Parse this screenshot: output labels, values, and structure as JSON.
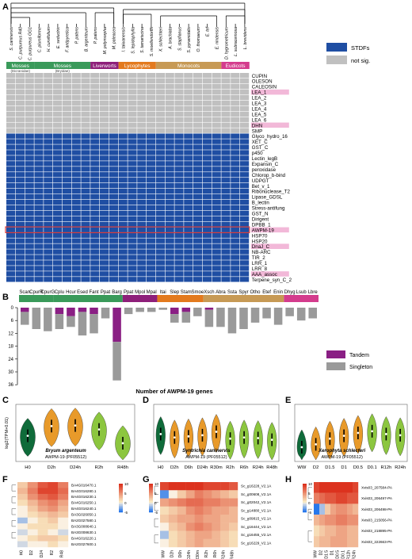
{
  "panel_letters": {
    "A": "A",
    "B": "B",
    "C": "C",
    "D": "D",
    "E": "E",
    "F": "F",
    "G": "G",
    "H": "H"
  },
  "colors": {
    "stdf": "#1f4ea3",
    "notsig": "#c0c0c0",
    "highlight_label": "#f2b8d8",
    "highlight_box": "#d63a3a",
    "mosses": "#3a9a5a",
    "liverworts": "#8e1f7a",
    "lycophytes": "#e37a1e",
    "monocots": "#c79a55",
    "eudicots": "#d43c8d",
    "tandem": "#8a1f84",
    "singleton": "#9a9a9a",
    "violin_dark": "#0f6b3a",
    "violin_orange": "#e89a2a",
    "violin_light": "#8cc63f"
  },
  "panel_A": {
    "species": [
      "S. caninervis",
      "C. purpureus R40",
      "C. purpureus GG1",
      "C. plumiforme",
      "H. curvifolium",
      "E. seductrix",
      "F. antipyretica",
      "P. patens",
      "B. argenteum",
      "P. patens",
      "M. polymorpha",
      "M. paleacea",
      "I. taiwanensis",
      "S. lepidophylla",
      "S. tamariscina",
      "S. moellendorffii",
      "X. schlechteri",
      "A. brachiata",
      "S. stapfianus",
      "S. pyramidalis",
      "O. thomaeum",
      "E. tef",
      "E. nindensis",
      "D. hygrometricum",
      "L. subracemosa",
      "L. brevidens"
    ],
    "groups": [
      {
        "name": "Mosses",
        "sub": "(Dicranidae)",
        "start": 0,
        "end": 3
      },
      {
        "name": "Mosses",
        "sub": "(Bryidae)",
        "start": 3,
        "end": 9
      },
      {
        "name": "Liverworts",
        "sub": "",
        "start": 9,
        "end": 12
      },
      {
        "name": "Lycophytes",
        "sub": "",
        "start": 12,
        "end": 16
      },
      {
        "name": "Monocots",
        "sub": "",
        "start": 16,
        "end": 23
      },
      {
        "name": "Eudicots",
        "sub": "",
        "start": 23,
        "end": 26
      }
    ],
    "legend": {
      "stdf": "STDFs",
      "notsig": "not sig."
    },
    "families": [
      "CUPIN",
      "OLESON",
      "CALEOSIN",
      "LEA_1",
      "LEA_2",
      "LEA_3",
      "LEA_4",
      "LEA_5",
      "LEA_6",
      "DHN",
      "SMP",
      "Glyco_hydro_16",
      "XET_C",
      "GST_C",
      "p450",
      "Lectin_legB",
      "Expansin_C",
      "peroxidase",
      "Chlorop_b-bind",
      "UDPGT",
      "Bet_v_1",
      "Ribonuclease_T2",
      "Lipase_GDSL",
      "B_lectin",
      "Stress-antifung",
      "GST_N",
      "Dirigent",
      "DPBB_1",
      "AWPM-19",
      "HSP70",
      "HSP20",
      "DnaJ_C",
      "NB-ARC",
      "TIR_2",
      "LRR_1",
      "LRR_8",
      "AAA_assoc",
      "Terpene_syn_C_2"
    ],
    "highlighted": [
      "LEA_1",
      "DHN",
      "AWPM-19",
      "DnaJ_C",
      "AAA_assoc"
    ],
    "boxed_row": "AWPM-19",
    "matrix": [
      "00000000000000000000000000",
      "00000000000000000000000000",
      "00000000000000000000000000",
      "00000000000000000000000000",
      "00000000000000000000000000",
      "00000000000000000000000000",
      "00000000000000000000000000",
      "00000000000000000000000000",
      "00000000000000000000000000",
      "00000000000000000000000000",
      "00000000000000000000000000",
      "11111111111111111111111111",
      "11111111111111111111111111",
      "11111111111111111111111111",
      "11111111111111111111111111",
      "11111111111111111111111111",
      "11111111111111111111111111",
      "11111111111111111111111111",
      "11111111111111111111111111",
      "11111111111111111111111111",
      "11111111111111111111111111",
      "11111111111111111111111111",
      "11111111111111111111111111",
      "11111111111111111111111111",
      "11111111111111111111111111",
      "11111111111111111111111111",
      "11111111111111111111111111",
      "11111111111111111111111111",
      "11111111111111111111111111",
      "11111111111111111111111111",
      "11111111111111111111111111",
      "11111111111111111111111111",
      "11111111111111111111111111",
      "11111111111111111111111111",
      "11111111111111111111111111",
      "11111111111111111111111111",
      "11111111111111111111111111",
      "11111111111111111111111111"
    ]
  },
  "panel_B": {
    "species_abbr": [
      "Scan",
      "CpurR",
      "CpurG",
      "Cplu",
      "Hcur",
      "Esed",
      "Fant",
      "Ppat",
      "Barg",
      "Ppat",
      "Mpol",
      "Mpal",
      "Itai",
      "Slep",
      "Stam",
      "Smoe",
      "Xsch",
      "Abra",
      "Ssta",
      "Spyr",
      "Otho",
      "Etef",
      "Enin",
      "Dhyg",
      "Lsub",
      "Lbre"
    ],
    "yticks": [
      0,
      6,
      12,
      18,
      24,
      30,
      36
    ],
    "xlabel": "Number of AWPM-19 genes",
    "legend": [
      "Tandem",
      "Singleton"
    ]
  },
  "violins": [
    {
      "panel": "C",
      "title": "Bryum argenteum",
      "subtitle": "AWPM-19 (PF05512)",
      "ylabel": "log2(TPM+0.01)",
      "conditions": [
        "H0",
        "D2h",
        "D24h",
        "R2h",
        "R48h"
      ],
      "medians": [
        4.5,
        6.2,
        6.3,
        5.6,
        3.2
      ],
      "ymin": 0,
      "ymax": 10
    },
    {
      "panel": "D",
      "title": "Syntrichia caninervis",
      "subtitle": "AWPM-19 (PF05512)",
      "conditions": [
        "H0",
        "D2h",
        "D6h",
        "D24h",
        "R30m",
        "R2h",
        "R6h",
        "R24h",
        "R48h"
      ],
      "medians": [
        4.8,
        4.2,
        4.4,
        4.6,
        5.2,
        4.0,
        4.2,
        4.1,
        3.8
      ],
      "ymin": 0,
      "ymax": 10
    },
    {
      "panel": "E",
      "title": "Xerophyta schlecteri",
      "subtitle": "AWPM-19 (PF05512)",
      "conditions": [
        "WW",
        "D2",
        "D1.5",
        "D1",
        "D0.5",
        "D0.1",
        "R12h",
        "R24h"
      ],
      "medians": [
        2.5,
        3.0,
        4.0,
        4.5,
        5.0,
        5.3,
        4.8,
        4.6
      ],
      "ymin": 0,
      "ymax": 10
    }
  ],
  "heatmaps": [
    {
      "panel": "F",
      "genes": [
        "BA4G016470.1",
        "BA4G016280.1",
        "BA4G016230.1",
        "BA4G016250.1",
        "BA4G016240.1",
        "BA3G026050.1",
        "BA2G027580.1",
        "BA3G008640.1",
        "BA3G008630.1",
        "BA4G016220.1",
        "BA2G027600.1"
      ],
      "conditions": [
        "H0",
        "D2",
        "D24",
        "R2",
        "R48"
      ],
      "legend_ticks": [
        10,
        5,
        0,
        -5
      ],
      "values": [
        [
          2,
          5,
          8,
          9,
          6
        ],
        [
          3,
          6,
          9,
          9,
          7
        ],
        [
          2,
          5,
          7,
          8,
          6
        ],
        [
          1,
          3,
          5,
          6,
          4
        ],
        [
          0,
          2,
          4,
          5,
          3
        ],
        [
          0,
          1,
          2,
          3,
          2
        ],
        [
          -2,
          0,
          1,
          2,
          0
        ],
        [
          0,
          1,
          1,
          1,
          0
        ],
        [
          -1,
          0,
          1,
          0,
          -1
        ],
        [
          0,
          1,
          2,
          2,
          1
        ],
        [
          -1,
          0,
          0,
          1,
          0
        ]
      ]
    },
    {
      "panel": "G",
      "genes": [
        "Sc_g16228_V2.1A",
        "Sc_g00608_V2.1A",
        "Sc_g02042_V2.1A",
        "Sc_g14880_V2.1A",
        "Sc_g09815_V2.1A",
        "Sc_g16444_V2.1A",
        "Sc_g16455_V2.1A",
        "Sc_g16229_V2.1A"
      ],
      "conditions": [
        "WW",
        "D2h",
        "D6h",
        "D24h",
        "R30m",
        "R2h",
        "R6h",
        "R24h",
        "R48h"
      ],
      "legend_ticks": [
        10,
        5,
        0,
        -5
      ],
      "values": [
        [
          9,
          10,
          10,
          10,
          10,
          9,
          9,
          9,
          8
        ],
        [
          -4,
          0,
          2,
          4,
          6,
          5,
          4,
          3,
          2
        ],
        [
          4,
          5,
          6,
          7,
          7,
          6,
          6,
          5,
          5
        ],
        [
          1,
          2,
          3,
          5,
          6,
          5,
          4,
          4,
          3
        ],
        [
          2,
          3,
          4,
          4,
          5,
          4,
          4,
          3,
          3
        ],
        [
          0,
          2,
          3,
          5,
          6,
          5,
          4,
          3,
          2
        ],
        [
          -2,
          1,
          2,
          3,
          4,
          4,
          3,
          2,
          1
        ],
        [
          0,
          1,
          2,
          3,
          4,
          3,
          3,
          2,
          1
        ]
      ]
    },
    {
      "panel": "H",
      "genes": [
        "Xvis03_207584-PA",
        "Xvis03_206497-PA",
        "Xvis03_206498-PA",
        "Xvis03_215056-PA",
        "Xvis03_218895-PA",
        "Xvis03_222663-PA"
      ],
      "conditions": [
        "WW",
        "D2",
        "D1.5",
        "D1",
        "D0.5",
        "D0.1",
        "R12h",
        "R24h"
      ],
      "legend_ticks": [
        10,
        5,
        0,
        -5
      ],
      "values": [
        [
          9,
          10,
          10,
          10,
          10,
          10,
          10,
          9
        ],
        [
          6,
          7,
          8,
          8,
          9,
          9,
          8,
          8
        ],
        [
          -5,
          -2,
          2,
          4,
          5,
          5,
          4,
          3
        ],
        [
          3,
          4,
          5,
          5,
          6,
          6,
          5,
          5
        ],
        [
          1,
          2,
          3,
          3,
          4,
          4,
          3,
          3
        ],
        [
          2,
          3,
          3,
          4,
          4,
          4,
          3,
          3
        ]
      ]
    }
  ],
  "chart_data": [
    {
      "type": "heatmap",
      "panel": "A",
      "legend": [
        "STDFs",
        "not sig."
      ]
    },
    {
      "type": "bar",
      "panel": "B",
      "categories": [
        "Scan",
        "CpurR",
        "CpurG",
        "Cplu",
        "Hcur",
        "Esed",
        "Fant",
        "Ppat",
        "Barg",
        "Ppat",
        "Mpol",
        "Mpal",
        "Itai",
        "Slep",
        "Stam",
        "Smoe",
        "Xsch",
        "Abra",
        "Ssta",
        "Spyr",
        "Otho",
        "Etef",
        "Enin",
        "Dhyg",
        "Lsub",
        "Lbre"
      ],
      "series": [
        {
          "name": "Tandem",
          "values": [
            2,
            0,
            0,
            3,
            4,
            2,
            3,
            0,
            16,
            0,
            0,
            0,
            0,
            3,
            2,
            0,
            1,
            0,
            0,
            0,
            0,
            0,
            0,
            0,
            0,
            0
          ]
        },
        {
          "name": "Singleton",
          "values": [
            6,
            10,
            11,
            7,
            5,
            11,
            9,
            5,
            18,
            3,
            2,
            2,
            1,
            4,
            5,
            4,
            8,
            9,
            12,
            10,
            7,
            5,
            8,
            4,
            6,
            5
          ]
        }
      ],
      "xlabel": "Number of AWPM-19 genes",
      "ylim": [
        0,
        36
      ]
    },
    {
      "type": "violin",
      "panel": "C"
    },
    {
      "type": "violin",
      "panel": "D"
    },
    {
      "type": "violin",
      "panel": "E"
    },
    {
      "type": "heatmap",
      "panel": "F"
    },
    {
      "type": "heatmap",
      "panel": "G"
    },
    {
      "type": "heatmap",
      "panel": "H"
    }
  ]
}
